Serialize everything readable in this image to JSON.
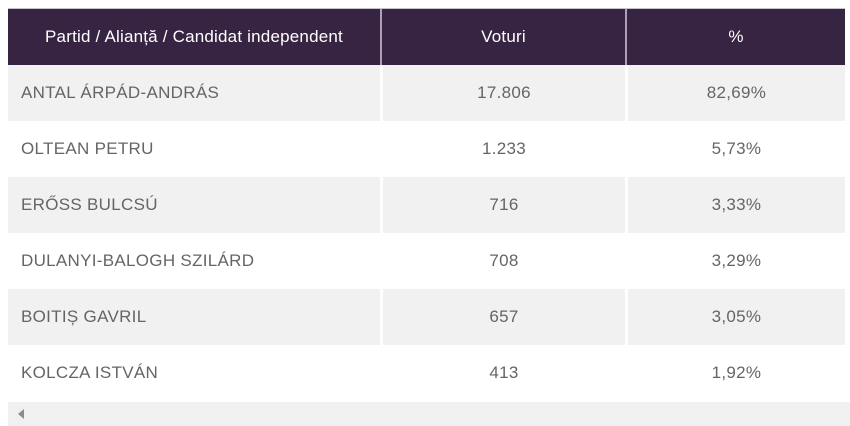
{
  "table": {
    "columns": [
      {
        "label": "Partid / Alianță / Candidat independent"
      },
      {
        "label": "Voturi"
      },
      {
        "label": "%"
      }
    ],
    "rows": [
      {
        "name": "ANTAL ÁRPÁD-ANDRÁS",
        "votes": "17.806",
        "percent": "82,69%"
      },
      {
        "name": "OLTEAN PETRU",
        "votes": "1.233",
        "percent": "5,73%"
      },
      {
        "name": "ERŐSS BULCSÚ",
        "votes": "716",
        "percent": "3,33%"
      },
      {
        "name": "DULANYI-BALOGH SZILÁRD",
        "votes": "708",
        "percent": "3,29%"
      },
      {
        "name": "BOITIȘ GAVRIL",
        "votes": "657",
        "percent": "3,05%"
      },
      {
        "name": "KOLCZA ISTVÁN",
        "votes": "413",
        "percent": "1,92%"
      }
    ]
  },
  "scrollbar": {
    "direction": "left"
  },
  "colors": {
    "header_bg": "#372442",
    "header_text": "#ffffff",
    "header_divider": "#aaa1b5",
    "header_top_border": "#c9c3d1",
    "row_alt_bg": "#f1f1f1",
    "row_bg": "#ffffff",
    "body_text": "#646569",
    "scroll_track": "#f0f0f0",
    "scroll_arrow": "#8c8c8c"
  }
}
